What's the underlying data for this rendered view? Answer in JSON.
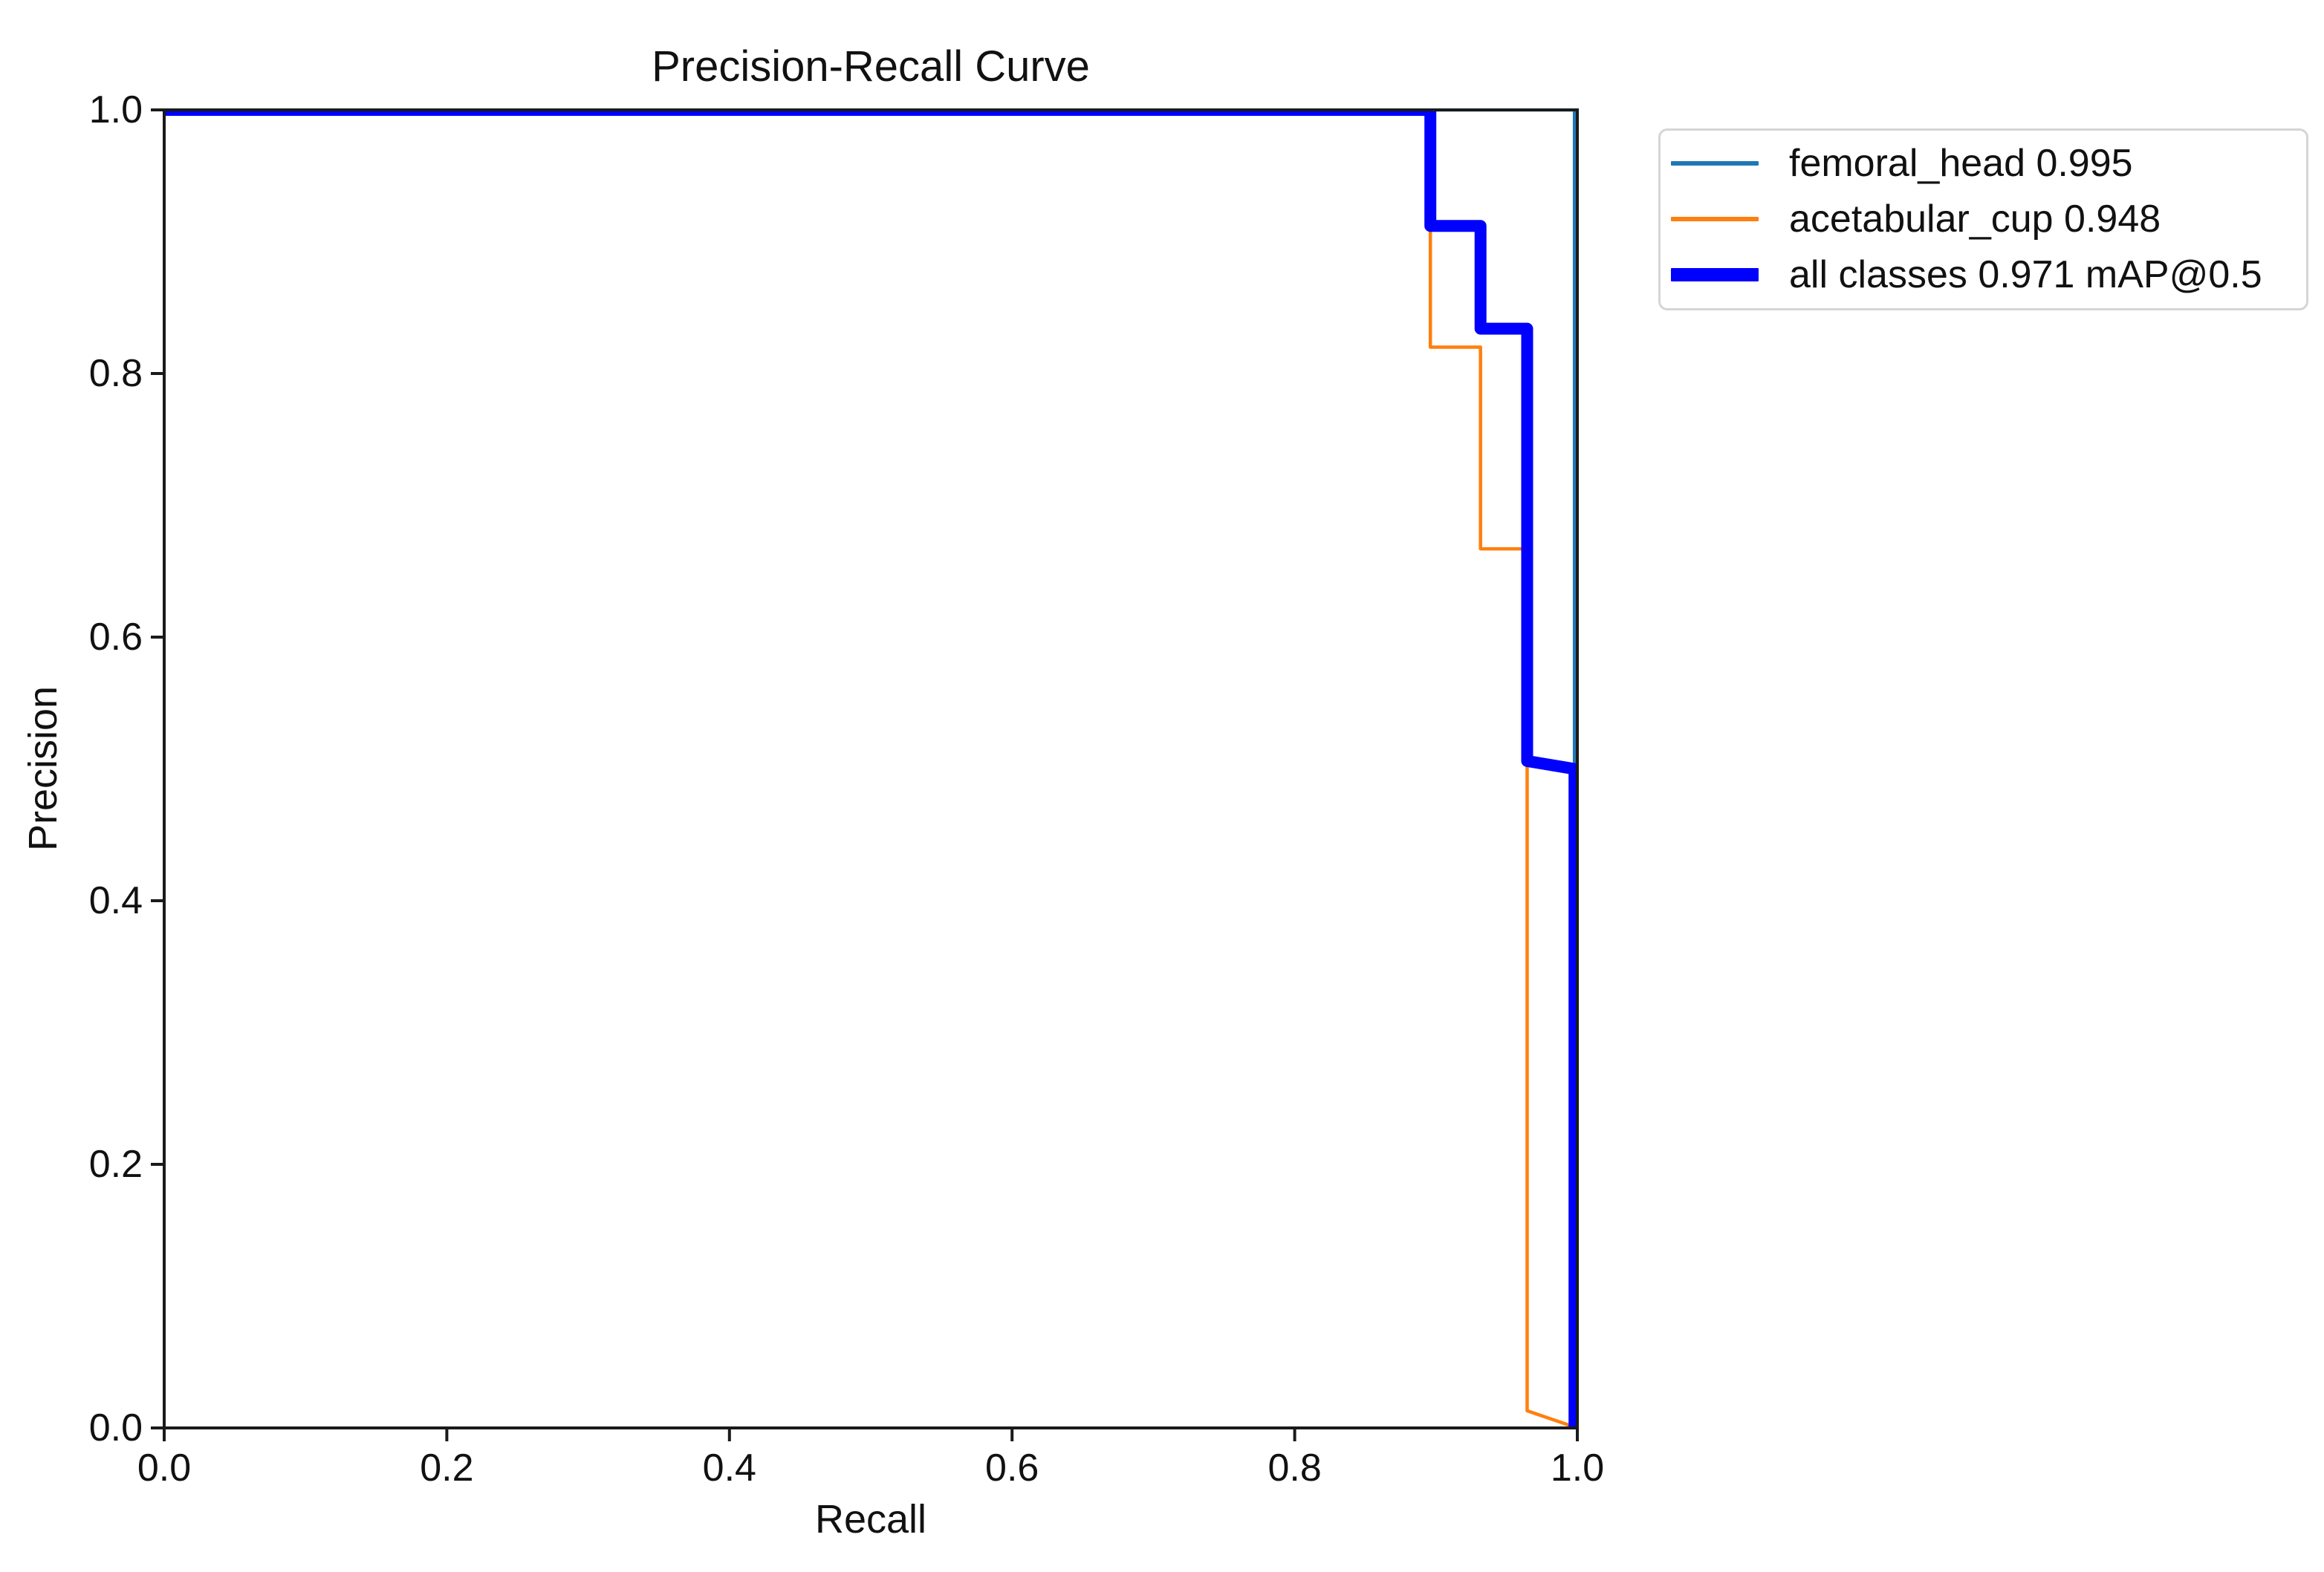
{
  "figure": {
    "title": "Precision-Recall Curve"
  },
  "axes": {
    "x_label": "Recall",
    "y_label": "Precision",
    "x_ticks": [
      0.0,
      0.2,
      0.4,
      0.6,
      0.8,
      1.0
    ],
    "y_ticks": [
      0.0,
      0.2,
      0.4,
      0.6,
      0.8,
      1.0
    ],
    "x_tick_labels": [
      "0.0",
      "0.2",
      "0.4",
      "0.6",
      "0.8",
      "1.0"
    ],
    "y_tick_labels_top_to_bottom": [
      "1.0",
      "0.8",
      "0.6",
      "0.4",
      "0.2",
      "0.0"
    ],
    "frame_color": "#1a1a1a"
  },
  "legend": {
    "entries": [
      {
        "label": "femoral_head 0.995",
        "color": "#1f77b4",
        "thickness": "thin"
      },
      {
        "label": "acetabular_cup 0.948",
        "color": "#ff7f0e",
        "thickness": "thin"
      },
      {
        "label": "all classes 0.971 mAP@0.5",
        "color": "#0000ff",
        "thickness": "thick"
      }
    ]
  },
  "chart_data": {
    "type": "line",
    "title": "Precision-Recall Curve",
    "xlabel": "Recall",
    "ylabel": "Precision",
    "xlim": [
      0.0,
      1.0
    ],
    "ylim": [
      0.0,
      1.0
    ],
    "grid": false,
    "legend_position": "outside upper right",
    "series": [
      {
        "name": "femoral_head",
        "ap": 0.995,
        "color": "#1f77b4",
        "line_width": 4.5,
        "points": [
          [
            0.0,
            1.0
          ],
          [
            0.998,
            1.0
          ],
          [
            0.998,
            0.0
          ]
        ]
      },
      {
        "name": "acetabular_cup",
        "ap": 0.948,
        "color": "#ff7f0e",
        "line_width": 4.5,
        "points": [
          [
            0.0,
            1.0
          ],
          [
            0.896,
            1.0
          ],
          [
            0.896,
            0.82
          ],
          [
            0.9315,
            0.82
          ],
          [
            0.9315,
            0.667
          ],
          [
            0.9645,
            0.667
          ],
          [
            0.9645,
            0.013
          ],
          [
            1.0,
            0.0
          ]
        ]
      },
      {
        "name": "all classes",
        "map50": 0.971,
        "color": "#0000ff",
        "line_width": 16,
        "points": [
          [
            0.0,
            1.0
          ],
          [
            0.896,
            1.0
          ],
          [
            0.896,
            0.912
          ],
          [
            0.9315,
            0.912
          ],
          [
            0.9315,
            0.834
          ],
          [
            0.9645,
            0.834
          ],
          [
            0.9645,
            0.506
          ],
          [
            0.998,
            0.5
          ],
          [
            0.998,
            0.0
          ]
        ]
      }
    ]
  }
}
